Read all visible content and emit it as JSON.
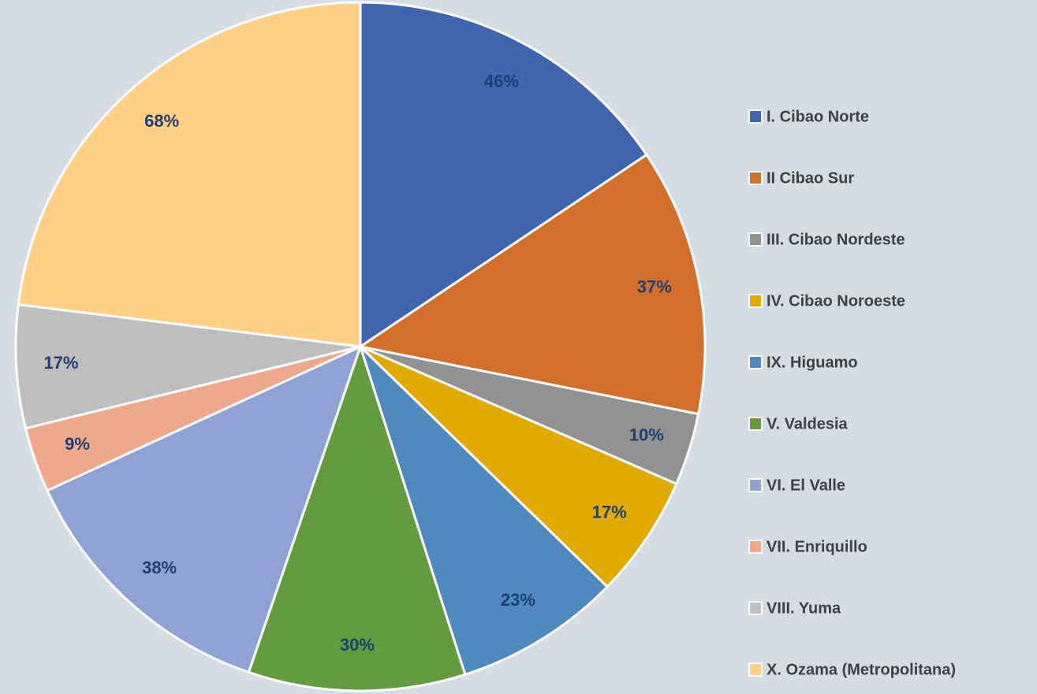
{
  "chart_data": {
    "type": "pie",
    "categories": [
      "I. Cibao Norte",
      "II Cibao Sur",
      "III. Cibao Nordeste",
      "IV. Cibao Noroeste",
      "IX. Higuamo",
      "V. Valdesia",
      "VI. El Valle",
      "VII. Enriquillo",
      "VIII. Yuma",
      "X. Ozama (Metropolitana)"
    ],
    "values": [
      46,
      37,
      10,
      17,
      23,
      30,
      38,
      9,
      17,
      68
    ],
    "value_labels": [
      "46%",
      "37%",
      "10%",
      "17%",
      "23%",
      "30%",
      "38%",
      "9%",
      "17%",
      "68%"
    ],
    "colors": [
      "#4064ad",
      "#d36e2b",
      "#929292",
      "#e0aa00",
      "#4f89bd",
      "#659b3f",
      "#8ea3d4",
      "#f0a88c",
      "#bebebe",
      "#ffd085"
    ],
    "legend": "right"
  }
}
